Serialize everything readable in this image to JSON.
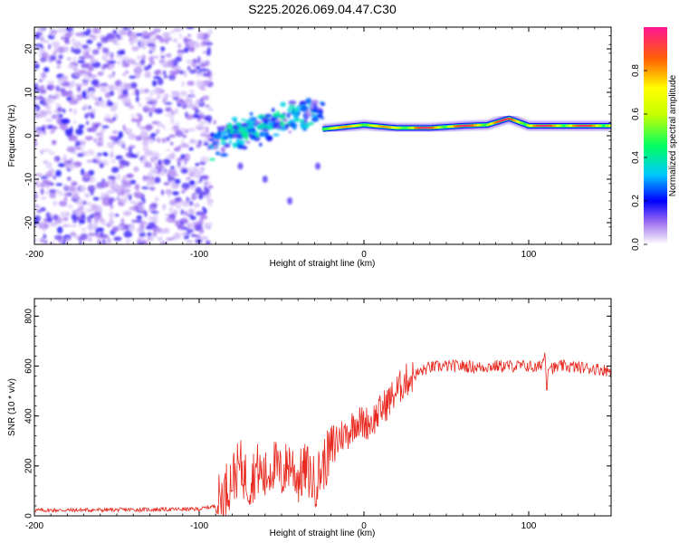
{
  "figure": {
    "title": "S225.2026.069.04.47.C30"
  },
  "chart_data": [
    {
      "type": "heatmap",
      "title": "S225.2026.069.04.47.C30",
      "xlabel": "Height of straight line (km)",
      "ylabel": "Frequency (Hz)",
      "xlim": [
        -200,
        150
      ],
      "ylim": [
        -25,
        25
      ],
      "xticks": [
        -200,
        -100,
        0,
        100
      ],
      "yticks": [
        -20,
        -10,
        0,
        10,
        20
      ],
      "colorbar": {
        "label": "Normalized spectral amplitude",
        "range": [
          0,
          1
        ],
        "ticks": [
          0.0,
          0.2,
          0.4,
          0.6,
          0.8
        ]
      },
      "features": [
        {
          "name": "noise",
          "x_range": [
            -200,
            -93
          ],
          "y_range": [
            -25,
            25
          ],
          "amplitude": 0.15
        },
        {
          "name": "transition-blobs",
          "x_range": [
            -93,
            -25
          ],
          "y_range": [
            -3,
            10
          ],
          "amplitude": 0.35
        },
        {
          "name": "carrier-line",
          "x": [
            -25,
            0,
            20,
            40,
            60,
            75,
            88,
            100,
            110,
            150
          ],
          "freq_hz": [
            1.5,
            2.5,
            1.8,
            1.8,
            2.3,
            2.5,
            4.0,
            2.3,
            2.3,
            2.3
          ],
          "amplitude": 0.9
        }
      ]
    },
    {
      "type": "line",
      "xlabel": "Height of straight line (km)",
      "ylabel": "SNR (10 * v/v)",
      "xlim": [
        -200,
        150
      ],
      "ylim": [
        0,
        870
      ],
      "xticks": [
        -200,
        -100,
        0,
        100
      ],
      "yticks": [
        0,
        200,
        400,
        600,
        800
      ],
      "color": "#e8281e",
      "series": [
        {
          "name": "SNR",
          "x": [
            -200,
            -150,
            -100,
            -90,
            -80,
            -75,
            -70,
            -65,
            -60,
            -55,
            -50,
            -45,
            -40,
            -35,
            -30,
            -25,
            -20,
            -15,
            -10,
            -5,
            0,
            5,
            10,
            15,
            20,
            25,
            30,
            35,
            40,
            50,
            60,
            70,
            80,
            90,
            100,
            105,
            108,
            110,
            111,
            112,
            115,
            120,
            130,
            140,
            150
          ],
          "y": [
            22,
            24,
            27,
            40,
            150,
            200,
            130,
            190,
            150,
            210,
            160,
            220,
            150,
            190,
            130,
            200,
            260,
            320,
            330,
            380,
            370,
            380,
            420,
            460,
            500,
            540,
            560,
            580,
            595,
            600,
            600,
            595,
            600,
            600,
            600,
            590,
            610,
            650,
            500,
            610,
            590,
            600,
            595,
            590,
            580
          ]
        }
      ]
    }
  ]
}
